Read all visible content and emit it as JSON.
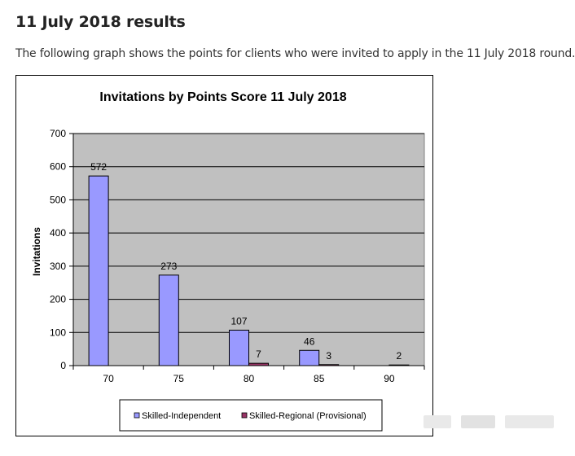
{
  "page": {
    "heading": "11 July 2018 results",
    "intro": "The following graph shows the points for clients who were invited to apply in the 11 July 2018 round."
  },
  "chart_data": {
    "type": "bar",
    "title": "Invitations by Points Score 11 July 2018",
    "xlabel": "",
    "ylabel": "Invitations",
    "categories": [
      "70",
      "75",
      "80",
      "85",
      "90"
    ],
    "ylim": [
      0,
      700
    ],
    "yticks": [
      0,
      100,
      200,
      300,
      400,
      500,
      600,
      700
    ],
    "grid": true,
    "legend_position": "bottom",
    "series": [
      {
        "name": "Skilled-Independent",
        "color": "#9999ff",
        "values": [
          572,
          273,
          107,
          46,
          0
        ],
        "labels": [
          "572",
          "273",
          "107",
          "46",
          null
        ]
      },
      {
        "name": "Skilled-Regional (Provisional)",
        "color": "#993366",
        "values": [
          0,
          0,
          7,
          3,
          2
        ],
        "labels": [
          null,
          null,
          "7",
          "3",
          "2"
        ]
      }
    ],
    "colors": {
      "plot_background": "#c0c0c0"
    }
  }
}
